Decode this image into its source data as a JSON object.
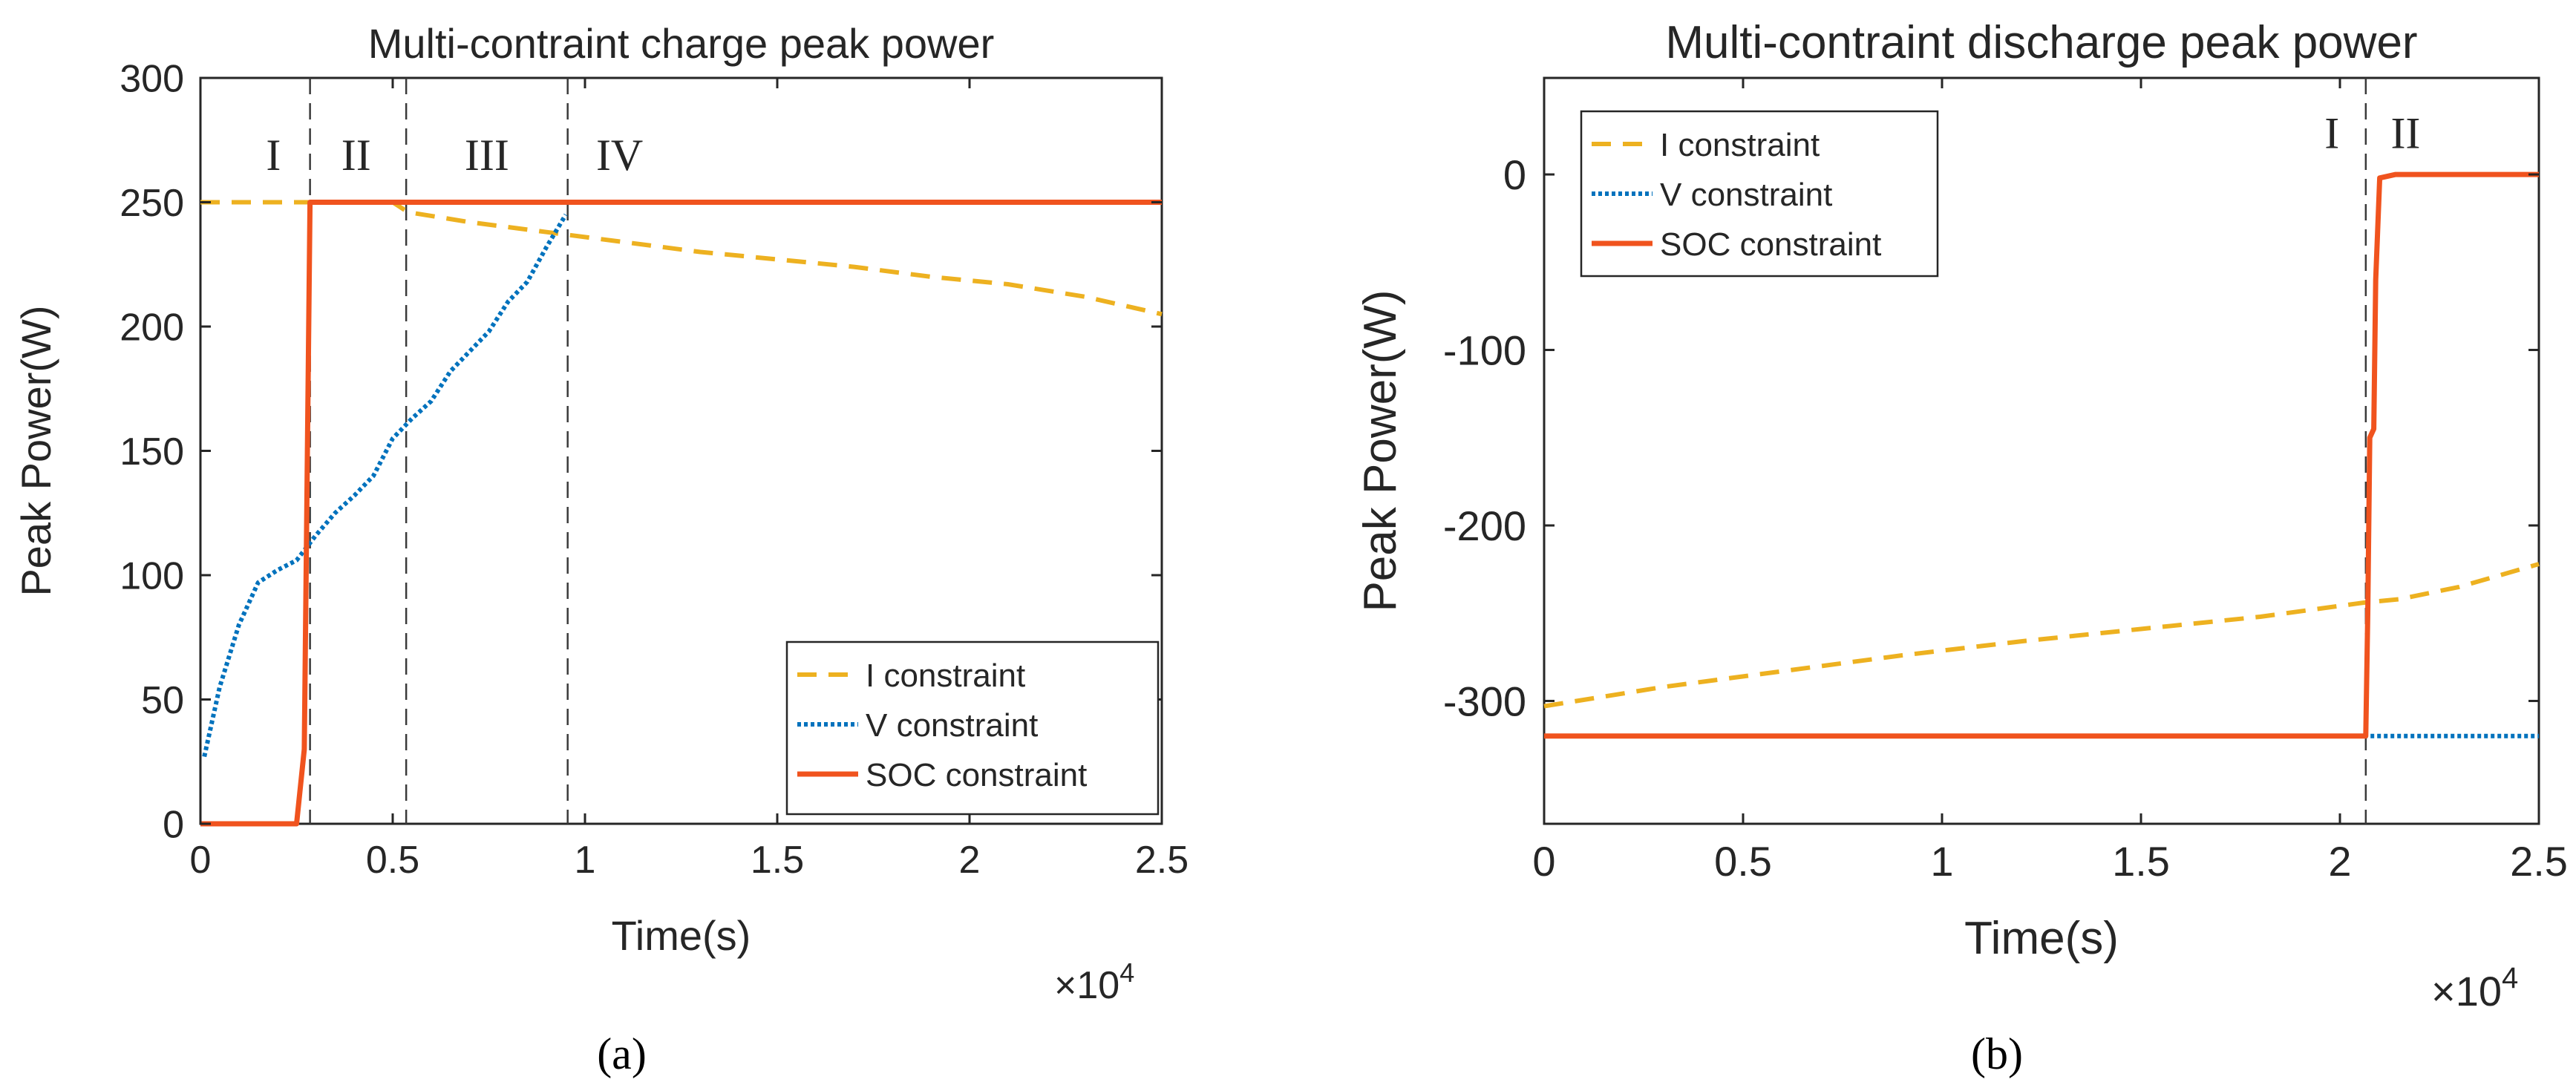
{
  "figure": {
    "caption_a": "(a)",
    "caption_b": "(b)"
  },
  "colors": {
    "i_constraint": "#EDB120",
    "v_constraint": "#0072BD",
    "soc_constraint": "#F0531E",
    "axes": "#262626",
    "region_lines": "#3a3a3a"
  },
  "chart_data": [
    {
      "type": "line",
      "title": "Multi-contraint charge peak power",
      "xlabel": "Time(s)",
      "ylabel": "Peak Power(W)",
      "x_exponent_label": "×10",
      "x_exponent_power": "4",
      "xlim": [
        0,
        2.5
      ],
      "ylim": [
        0,
        300
      ],
      "xticks": [
        0,
        0.5,
        1,
        1.5,
        2,
        2.5
      ],
      "xtick_labels": [
        "0",
        "0.5",
        "1",
        "1.5",
        "2",
        "2.5"
      ],
      "yticks": [
        0,
        50,
        100,
        150,
        200,
        250,
        300
      ],
      "ytick_labels": [
        "0",
        "50",
        "100",
        "150",
        "200",
        "250",
        "300"
      ],
      "legend_position": "bottom-right",
      "region_lines_x": [
        0.285,
        0.535,
        0.955
      ],
      "regions": [
        {
          "label": "I",
          "x": 0.19,
          "y": 263
        },
        {
          "label": "II",
          "x": 0.405,
          "y": 263
        },
        {
          "label": "III",
          "x": 0.745,
          "y": 263
        },
        {
          "label": "IV",
          "x": 1.09,
          "y": 263
        }
      ],
      "series": [
        {
          "name": "I constraint",
          "style": "dashed",
          "x": [
            0,
            0.2,
            0.5,
            0.54,
            0.7,
            0.9,
            1.1,
            1.3,
            1.5,
            1.7,
            1.9,
            2.1,
            2.3,
            2.5
          ],
          "y": [
            250,
            250,
            250,
            246,
            242,
            238,
            234,
            230,
            227,
            224,
            220,
            217,
            212,
            205
          ]
        },
        {
          "name": "V constraint",
          "style": "dotted",
          "x": [
            0.01,
            0.05,
            0.1,
            0.15,
            0.2,
            0.25,
            0.3,
            0.35,
            0.4,
            0.45,
            0.5,
            0.55,
            0.6,
            0.65,
            0.7,
            0.75,
            0.8,
            0.85,
            0.9,
            0.95
          ],
          "y": [
            27,
            55,
            80,
            97,
            102,
            106,
            116,
            125,
            132,
            140,
            155,
            163,
            170,
            182,
            190,
            198,
            210,
            218,
            232,
            245
          ]
        },
        {
          "name": "SOC constraint",
          "style": "solid",
          "x": [
            0,
            0.25,
            0.27,
            0.285,
            2.5
          ],
          "y": [
            0,
            0,
            30,
            250,
            250
          ]
        }
      ]
    },
    {
      "type": "line",
      "title": "Multi-contraint discharge peak power",
      "xlabel": "Time(s)",
      "ylabel": "Peak Power(W)",
      "x_exponent_label": "×10",
      "x_exponent_power": "4",
      "xlim": [
        0,
        2.5
      ],
      "ylim": [
        -370,
        55
      ],
      "xticks": [
        0,
        0.5,
        1,
        1.5,
        2,
        2.5
      ],
      "xtick_labels": [
        "0",
        "0.5",
        "1",
        "1.5",
        "2",
        "2.5"
      ],
      "yticks": [
        -300,
        -200,
        -100,
        0
      ],
      "ytick_labels": [
        "-300",
        "-200",
        "-100",
        "0"
      ],
      "legend_position": "top-left",
      "region_lines_x": [
        2.065
      ],
      "regions": [
        {
          "label": "I",
          "x": 1.98,
          "y": 15
        },
        {
          "label": "II",
          "x": 2.165,
          "y": 15
        }
      ],
      "series": [
        {
          "name": "I constraint",
          "style": "dashed",
          "x": [
            0,
            0.3,
            0.6,
            0.9,
            1.2,
            1.5,
            1.8,
            2.06,
            2.15,
            2.3,
            2.5
          ],
          "y": [
            -303,
            -292,
            -283,
            -274,
            -266,
            -259,
            -252,
            -244,
            -242,
            -235,
            -222
          ]
        },
        {
          "name": "V constraint",
          "style": "dotted",
          "x": [
            2.06,
            2.5
          ],
          "y": [
            -320,
            -320
          ]
        },
        {
          "name": "SOC constraint",
          "style": "solid",
          "x": [
            0,
            2.065,
            2.07,
            2.075,
            2.085,
            2.09,
            2.1,
            2.14,
            2.5
          ],
          "y": [
            -320,
            -320,
            -250,
            -150,
            -145,
            -60,
            -2,
            0,
            0
          ]
        }
      ]
    }
  ]
}
